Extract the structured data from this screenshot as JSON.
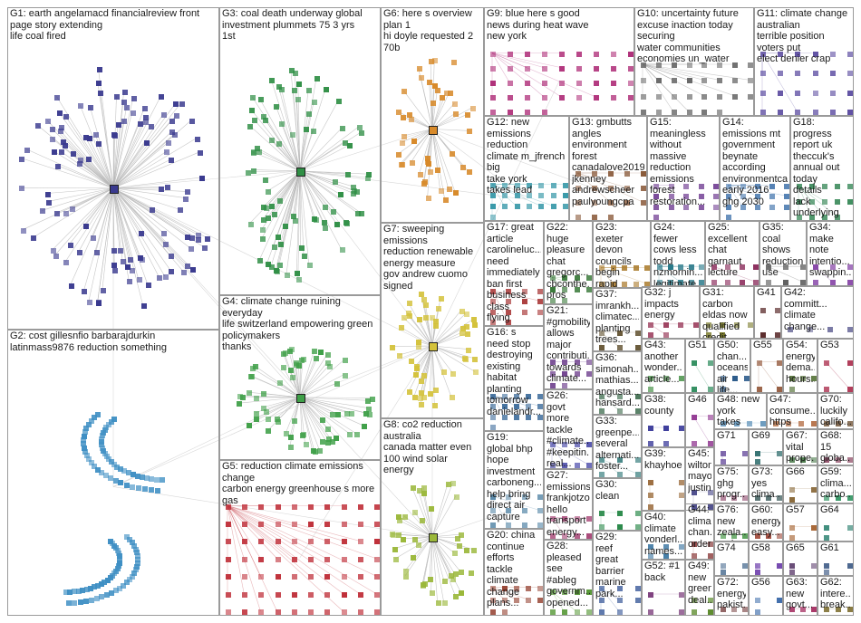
{
  "colors": {
    "background": "#ffffff",
    "border": "#9a9a9a",
    "edge": "#c8c8c8",
    "label": "#1a1a1a"
  },
  "clusters": [
    {
      "id": "G1",
      "label": "G1: earth angelamacd financialreview front page story extending life coal fired",
      "color": "#3a3a8f",
      "nodes": 120,
      "shape": "circle"
    },
    {
      "id": "G2",
      "label": "G2: cost gillesnfio barbarajdurkin latinmass9876 reduction something",
      "color": "#3e8fc4",
      "nodes": 110,
      "shape": "arcs"
    },
    {
      "id": "G3",
      "label": "G3: coal death underway global investment plummets 75 3 yrs 1st",
      "color": "#2f8f45",
      "nodes": 90,
      "shape": "circle"
    },
    {
      "id": "G4",
      "label": "G4: climate change ruining everyday life switzerland empowering green policymakers thanks",
      "color": "#3fa048",
      "nodes": 70,
      "shape": "circle"
    },
    {
      "id": "G5",
      "label": "G5: reduction climate emissions change carbon energy greenhouse s more gas",
      "color": "#c0303a",
      "nodes": 70,
      "shape": "grid"
    },
    {
      "id": "G6",
      "label": "G6: here s overview plan 1 hi doyle requested 2 70b",
      "color": "#d88a2a",
      "nodes": 45,
      "shape": "circle"
    },
    {
      "id": "G7",
      "label": "G7: sweeping emissions reduction renewable energy measure gov andrew cuomo signed",
      "color": "#d4c23a",
      "nodes": 50,
      "shape": "circle"
    },
    {
      "id": "G8",
      "label": "G8: co2 reduction australia canada matter even 100 wind solar energy",
      "color": "#9bb83a",
      "nodes": 45,
      "shape": "circle"
    },
    {
      "id": "G9",
      "label": "G9: blue here s good news during heat wave new york",
      "color": "#b0307a",
      "nodes": 40,
      "shape": "grid"
    },
    {
      "id": "G10",
      "label": "G10: uncertainty future excuse inaction today securing water communities economies un_water",
      "color": "#6a6a6a",
      "nodes": 30,
      "shape": "grid"
    },
    {
      "id": "G11",
      "label": "G11: climate change australian terrible position voters put elect denier crap",
      "color": "#5a4aa0",
      "nodes": 24,
      "shape": "grid"
    },
    {
      "id": "G12",
      "label": "G12: new emissions reduction climate m_jfrench big take york takes lead",
      "color": "#3a9aaa",
      "nodes": 22,
      "shape": "grid"
    },
    {
      "id": "G13",
      "label": "G13: gmbutts angles environment forest canadalove2019 jkenney andrewscheer paulyoungcpa",
      "color": "#8a5a3a",
      "nodes": 18,
      "shape": "grid"
    },
    {
      "id": "G14",
      "label": "G14: emissions mt government beynate according environmentca early 2016 ghg 2030",
      "color": "#4a7ab0",
      "nodes": 16,
      "shape": "grid"
    },
    {
      "id": "G15",
      "label": "G15: meaningless without massive reduction emissions forest restoration...",
      "color": "#7a4a9a",
      "nodes": 16,
      "shape": "grid"
    },
    {
      "id": "G16",
      "label": "G16: s need stop destroying existing habitat planting tomorrow danielandr...",
      "color": "#3a6a9a",
      "nodes": 16,
      "shape": "grid"
    },
    {
      "id": "G17",
      "label": "G17: great article carolineluc... need immediately ban first business class flying",
      "color": "#aa3a3a",
      "nodes": 14,
      "shape": "grid"
    },
    {
      "id": "G18",
      "label": "G18: progress report uk theccuk's annual out today details lack underlying",
      "color": "#3a8a5a",
      "nodes": 14,
      "shape": "grid"
    },
    {
      "id": "G19",
      "label": "G19: global bhp hope investment carboneng... help bring direct air capture",
      "color": "#5a8aaa",
      "nodes": 12,
      "shape": "grid"
    },
    {
      "id": "G20",
      "label": "G20: china continue efforts tackle climate change plans...",
      "color": "#9a4a3a",
      "nodes": 12,
      "shape": "grid"
    },
    {
      "id": "G21",
      "label": "G21: #gmobility allows major contributi... towards climate...",
      "color": "#6a3a8a",
      "nodes": 10,
      "shape": "grid"
    },
    {
      "id": "G22",
      "label": "G22: huge pleasure chat gregorc... cbconthe... pros cons banning...",
      "color": "#3a7a3a",
      "nodes": 10,
      "shape": "grid"
    },
    {
      "id": "G23",
      "label": "G23: exeter devon councils begin rapid regional...",
      "color": "#aa7a2a",
      "nodes": 10,
      "shape": "grid"
    },
    {
      "id": "G24",
      "label": "G24: fewer cows less todd nzmornin... legitimate...",
      "color": "#2a7a8a",
      "nodes": 10,
      "shape": "grid"
    },
    {
      "id": "G25",
      "label": "G25: excellent chat garnaut lecture",
      "color": "#8a2a5a",
      "nodes": 8,
      "shape": "grid"
    },
    {
      "id": "G26",
      "label": "G26: govt more tackle #climate... #keepitin... real...",
      "color": "#4a4aaa",
      "nodes": 8,
      "shape": "grid"
    },
    {
      "id": "G27",
      "label": "G27: emissions frankjotzo hello transport energy...",
      "color": "#aa4a7a",
      "nodes": 8,
      "shape": "grid"
    },
    {
      "id": "G28",
      "label": "G28: pleased see #ableg governm... opened...",
      "color": "#5a9a3a",
      "nodes": 8,
      "shape": "grid"
    },
    {
      "id": "G29",
      "label": "G29: reef great barrier marine park...",
      "color": "#3a5a9a",
      "nodes": 8,
      "shape": "grid"
    },
    {
      "id": "G30",
      "label": "G30: clean",
      "color": "#2a8a4a",
      "nodes": 6,
      "shape": "grid"
    },
    {
      "id": "G31",
      "label": "G31: carbon eldas now qualified credit...",
      "color": "#7a7a2a",
      "nodes": 6,
      "shape": "grid"
    },
    {
      "id": "G32",
      "label": "G32: j impacts energy",
      "color": "#9a3a5a",
      "nodes": 6,
      "shape": "grid"
    },
    {
      "id": "G33",
      "label": "G33: greenpe... several alternati... foster...",
      "color": "#4a8a8a",
      "nodes": 6,
      "shape": "grid"
    },
    {
      "id": "G34",
      "label": "G34: make note intentio... swappin...",
      "color": "#8a4aaa",
      "nodes": 6,
      "shape": "grid"
    },
    {
      "id": "G35",
      "label": "G35: coal shows reduction use",
      "color": "#5a5a5a",
      "nodes": 6,
      "shape": "grid"
    },
    {
      "id": "G36",
      "label": "G36: simonah... mathias... angusta... hansard...",
      "color": "#3a6a4a",
      "nodes": 6,
      "shape": "grid"
    },
    {
      "id": "G37",
      "label": "G37: imrankh... climatec... planting trees...",
      "color": "#6a5a3a",
      "nodes": 6,
      "shape": "grid"
    },
    {
      "id": "G38",
      "label": "G38: county",
      "color": "#3a3a9a",
      "nodes": 5,
      "shape": "grid"
    },
    {
      "id": "G39",
      "label": "G39: khayhoe",
      "color": "#9a6a3a",
      "nodes": 5,
      "shape": "grid"
    },
    {
      "id": "G40",
      "label": "G40: climate vonderl... names...",
      "color": "#2a6a9a",
      "nodes": 5,
      "shape": "grid"
    },
    {
      "id": "G41",
      "label": "G41",
      "color": "#5a2a2a",
      "nodes": 4,
      "shape": "grid"
    },
    {
      "id": "G42",
      "label": "G42: committ... climate change...",
      "color": "#6a6a9a",
      "nodes": 4,
      "shape": "grid"
    },
    {
      "id": "G43",
      "label": "G43: another wonder... article...",
      "color": "#3a8a3a",
      "nodes": 4,
      "shape": "grid"
    },
    {
      "id": "G44",
      "label": "G44: clima... chan... order...",
      "color": "#8a3a3a",
      "nodes": 4,
      "shape": "grid"
    },
    {
      "id": "G45",
      "label": "G45: wilton... mayor justin...",
      "color": "#4a4a8a",
      "nodes": 4,
      "shape": "grid"
    },
    {
      "id": "G46",
      "label": "G46",
      "color": "#8a2a8a",
      "nodes": 4,
      "shape": "grid"
    },
    {
      "id": "G47",
      "label": "G47: consume... https t...",
      "color": "#aa5a2a",
      "nodes": 4,
      "shape": "grid"
    },
    {
      "id": "G48",
      "label": "G48: new york takes lead...",
      "color": "#3a7aaa",
      "nodes": 4,
      "shape": "grid"
    },
    {
      "id": "G49",
      "label": "G49: new green deal...",
      "color": "#5a8a2a",
      "nodes": 4,
      "shape": "grid"
    },
    {
      "id": "G50",
      "label": "G50: chan... oceans air life...",
      "color": "#2a5a8a",
      "nodes": 4,
      "shape": "grid"
    },
    {
      "id": "G51",
      "label": "G51",
      "color": "#2a8a5a",
      "nodes": 4,
      "shape": "grid"
    },
    {
      "id": "G52",
      "label": "G52: #1 back",
      "color": "#7a3a7a",
      "nodes": 4,
      "shape": "grid"
    },
    {
      "id": "G53",
      "label": "G53",
      "color": "#aa2a4a",
      "nodes": 4,
      "shape": "grid"
    },
    {
      "id": "G54",
      "label": "G54: energy dema... hours...",
      "color": "#4a6a2a",
      "nodes": 4,
      "shape": "grid"
    },
    {
      "id": "G55",
      "label": "G55",
      "color": "#8a4a2a",
      "nodes": 4,
      "shape": "grid"
    },
    {
      "id": "G56",
      "label": "G56",
      "color": "#3a6aaa",
      "nodes": 3,
      "shape": "grid"
    },
    {
      "id": "G57",
      "label": "G57",
      "color": "#aa6a3a",
      "nodes": 3,
      "shape": "grid"
    },
    {
      "id": "G58",
      "label": "G58",
      "color": "#6a3aaa",
      "nodes": 3,
      "shape": "grid"
    },
    {
      "id": "G59",
      "label": "G59: clima... carbo...",
      "color": "#3a9a6a",
      "nodes": 3,
      "shape": "grid"
    },
    {
      "id": "G60",
      "label": "G60: energy easy...",
      "color": "#9a3a2a",
      "nodes": 3,
      "shape": "grid"
    },
    {
      "id": "G61",
      "label": "G61",
      "color": "#2a4a7a",
      "nodes": 3,
      "shape": "grid"
    },
    {
      "id": "G62",
      "label": "G62: intere... break...",
      "color": "#7a6a2a",
      "nodes": 3,
      "shape": "grid"
    },
    {
      "id": "G63",
      "label": "G63: new govt...",
      "color": "#aa3a6a",
      "nodes": 3,
      "shape": "grid"
    },
    {
      "id": "G64",
      "label": "G64",
      "color": "#3a8a7a",
      "nodes": 3,
      "shape": "grid"
    },
    {
      "id": "G65",
      "label": "G65",
      "color": "#5a3a6a",
      "nodes": 3,
      "shape": "grid"
    },
    {
      "id": "G66",
      "label": "G66",
      "color": "#8a6a3a",
      "nodes": 3,
      "shape": "grid"
    },
    {
      "id": "G67",
      "label": "G67: vital prope...",
      "color": "#4a7a4a",
      "nodes": 3,
      "shape": "grid"
    },
    {
      "id": "G68",
      "label": "G68: 15 globa...",
      "color": "#7a2a4a",
      "nodes": 3,
      "shape": "grid"
    },
    {
      "id": "G69",
      "label": "G69",
      "color": "#2a6a6a",
      "nodes": 3,
      "shape": "grid"
    },
    {
      "id": "G70",
      "label": "G70: luckily califo...",
      "color": "#6a4a2a",
      "nodes": 3,
      "shape": "grid"
    },
    {
      "id": "G71",
      "label": "G71",
      "color": "#4a2a8a",
      "nodes": 3,
      "shape": "grid"
    },
    {
      "id": "G72",
      "label": "G72: energy pakist...",
      "color": "#8a5a5a",
      "nodes": 3,
      "shape": "grid"
    },
    {
      "id": "G73",
      "label": "G73: yes clima...",
      "color": "#3a5a5a",
      "nodes": 3,
      "shape": "grid"
    },
    {
      "id": "G74",
      "label": "G74",
      "color": "#5a7a9a",
      "nodes": 3,
      "shape": "grid"
    },
    {
      "id": "G75",
      "label": "G75: ghg progr...",
      "color": "#9a5a7a",
      "nodes": 3,
      "shape": "grid"
    },
    {
      "id": "G76",
      "label": "G76: new zeala... agric...",
      "color": "#4a9a4a",
      "nodes": 3,
      "shape": "grid"
    }
  ]
}
